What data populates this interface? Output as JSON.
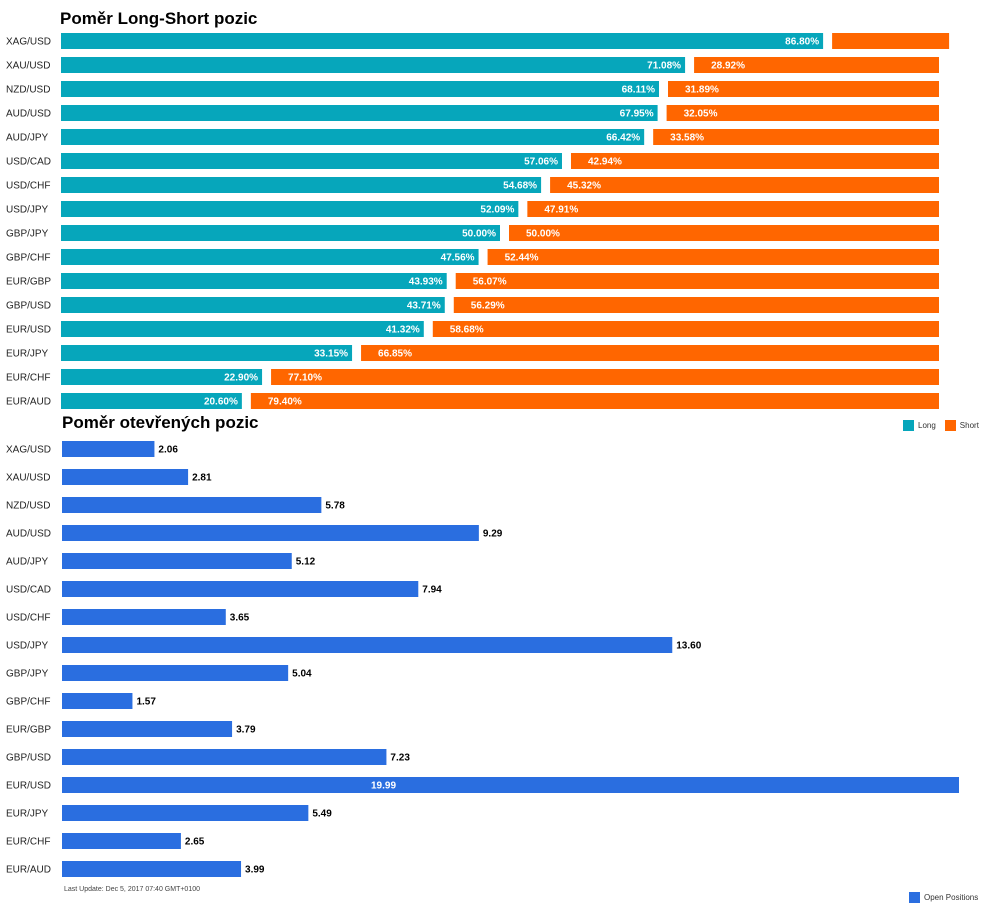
{
  "titles": {
    "long_short": "Poměr Long-Short pozic",
    "open": "Poměr otevřených pozic"
  },
  "legend": {
    "long": "Long",
    "short": "Short",
    "open": "Open Positions"
  },
  "colors": {
    "long": "#06a6bb",
    "short": "#ff6600",
    "open": "#2a6ee0"
  },
  "last_update": "Last Update: Dec 5, 2017 07:40 GMT+0100",
  "chart_data": [
    {
      "type": "bar",
      "orientation": "horizontal",
      "stacked": true,
      "title": "Poměr Long-Short pozic",
      "categories": [
        "XAG/USD",
        "XAU/USD",
        "NZD/USD",
        "AUD/USD",
        "AUD/JPY",
        "USD/CAD",
        "USD/CHF",
        "USD/JPY",
        "GBP/JPY",
        "GBP/CHF",
        "EUR/GBP",
        "GBP/USD",
        "EUR/USD",
        "EUR/JPY",
        "EUR/CHF",
        "EUR/AUD"
      ],
      "series": [
        {
          "name": "Long",
          "values": [
            86.8,
            71.08,
            68.11,
            67.95,
            66.42,
            57.06,
            54.68,
            52.09,
            50.0,
            47.56,
            43.93,
            43.71,
            41.32,
            33.15,
            22.9,
            20.6
          ],
          "labels": [
            "86.80%",
            "71.08%",
            "68.11%",
            "67.95%",
            "66.42%",
            "57.06%",
            "54.68%",
            "52.09%",
            "50.00%",
            "47.56%",
            "43.93%",
            "43.71%",
            "41.32%",
            "33.15%",
            "22.90%",
            "20.60%"
          ]
        },
        {
          "name": "Short",
          "values": [
            13.2,
            28.92,
            31.89,
            32.05,
            33.58,
            42.94,
            45.32,
            47.91,
            50.0,
            52.44,
            56.07,
            56.29,
            58.68,
            66.85,
            77.1,
            79.4
          ],
          "labels": [
            "",
            "28.92%",
            "31.89%",
            "32.05%",
            "33.58%",
            "42.94%",
            "45.32%",
            "47.91%",
            "50.00%",
            "52.44%",
            "56.07%",
            "56.29%",
            "58.68%",
            "66.85%",
            "77.10%",
            "79.40%"
          ]
        }
      ],
      "legend_position": "bottom-right"
    },
    {
      "type": "bar",
      "orientation": "horizontal",
      "title": "Poměr otevřených pozic",
      "categories": [
        "XAG/USD",
        "XAU/USD",
        "NZD/USD",
        "AUD/USD",
        "AUD/JPY",
        "USD/CAD",
        "USD/CHF",
        "USD/JPY",
        "GBP/JPY",
        "GBP/CHF",
        "EUR/GBP",
        "GBP/USD",
        "EUR/USD",
        "EUR/JPY",
        "EUR/CHF",
        "EUR/AUD"
      ],
      "series": [
        {
          "name": "Open Positions",
          "values": [
            2.06,
            2.81,
            5.78,
            9.29,
            5.12,
            7.94,
            3.65,
            13.6,
            5.04,
            1.57,
            3.79,
            7.23,
            19.99,
            5.49,
            2.65,
            3.99
          ],
          "labels": [
            "2.06",
            "2.81",
            "5.78",
            "9.29",
            "5.12",
            "7.94",
            "3.65",
            "13.60",
            "5.04",
            "1.57",
            "3.79",
            "7.23",
            "19.99",
            "5.49",
            "2.65",
            "3.99"
          ]
        }
      ],
      "legend_position": "bottom-right"
    }
  ]
}
